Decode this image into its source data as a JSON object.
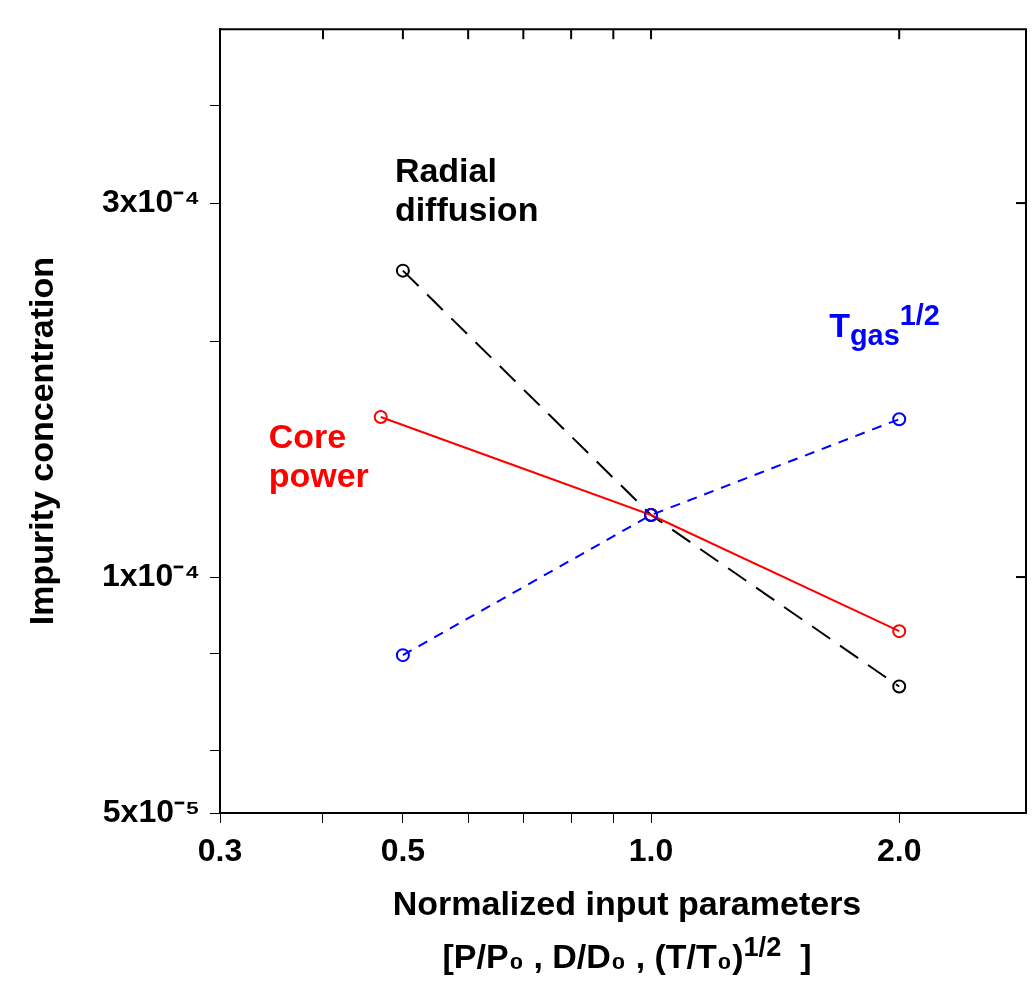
{
  "chart_data": {
    "type": "line",
    "xlabel": "Normalized input parameters\n[P/P₀ , D/D₀ , (T/T₀)$^{1/2}$  ]",
    "ylabel": "Impurity concentration",
    "log": "xy",
    "grid": false,
    "legend": false,
    "marker": "circle",
    "xlim": [
      0.3,
      2.85
    ],
    "xticks": [
      0.3,
      {
        "value": 0.4,
        "label": null
      },
      {
        "value": 0.5,
        "label": "0.5"
      },
      {
        "value": 0.6,
        "label": null
      },
      {
        "value": 0.7,
        "label": null
      },
      {
        "value": 0.8,
        "label": null
      },
      {
        "value": 0.9,
        "label": null
      },
      {
        "value": 1,
        "label": "1.0"
      },
      {
        "value": 2,
        "label": "2.0"
      }
    ],
    "ylim": [
      5e-05,
      0.0005
    ],
    "yticks": [
      {
        "value": 5e-05,
        "label": "5x10⁻⁵"
      },
      {
        "value": 6e-05,
        "label": null
      },
      {
        "value": 8e-05,
        "label": null
      },
      {
        "value": 0.0001,
        "label": "1x10⁻⁴"
      },
      {
        "value": 0.0002,
        "label": null
      },
      {
        "value": 0.0003,
        "label": "3x10⁻⁴"
      },
      {
        "value": 0.0004,
        "label": null
      }
    ],
    "series": [
      {
        "name": "Radial diffusion",
        "color": "#000000",
        "line_style": "dashed",
        "x": [
          0.5,
          1,
          2
        ],
        "values": [
          0.000246,
          0.00012,
          7.25e-05
        ]
      },
      {
        "name": "Core power",
        "color": "#ff0000",
        "line_style": "solid",
        "x": [
          0.47,
          1,
          2
        ],
        "values": [
          0.00016,
          0.00012,
          8.53e-05
        ]
      },
      {
        "name": "T$_{gas}$$^{1/2}$",
        "color": "#0000ff",
        "line_style": "dotted",
        "x": [
          0.5,
          1,
          2
        ],
        "values": [
          7.95e-05,
          0.00012,
          0.000159
        ]
      }
    ]
  }
}
